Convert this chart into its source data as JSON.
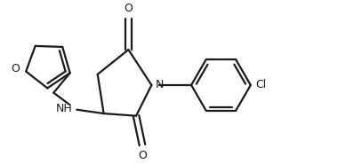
{
  "background_color": "#ffffff",
  "line_color": "#1a1a1a",
  "line_width": 1.6,
  "figsize": [
    3.98,
    1.85
  ],
  "dpi": 100,
  "xlim": [
    -1.1,
    3.2
  ],
  "ylim": [
    -1.05,
    1.05
  ]
}
